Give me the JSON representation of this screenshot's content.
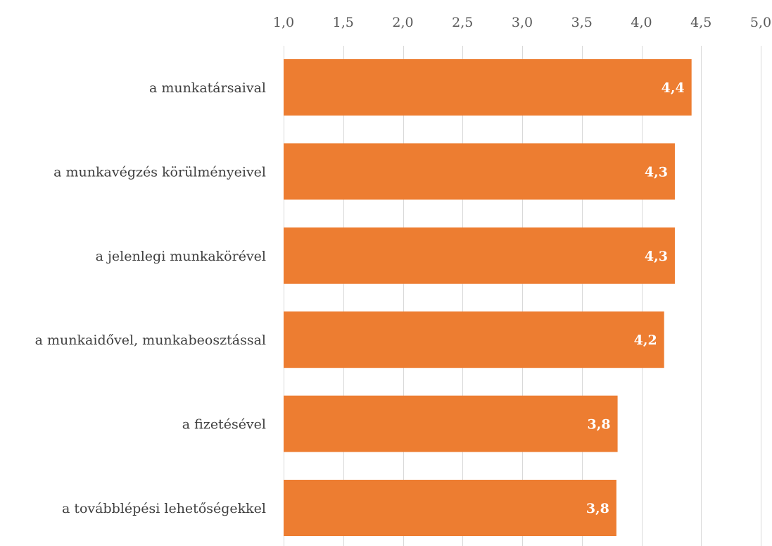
{
  "chart_data": {
    "type": "bar",
    "orientation": "horizontal",
    "categories": [
      "a munkatársaival",
      "a munkavégzés körülményeivel",
      "a jelenlegi munkakörével",
      "a munkaidővel, munkabeosztással",
      "a fizetésével",
      "a továbblépési lehetőségekkel"
    ],
    "values": [
      4.42,
      4.28,
      4.28,
      4.19,
      3.8,
      3.79
    ],
    "data_labels": [
      "4,4",
      "4,3",
      "4,3",
      "4,2",
      "3,8",
      "3,8"
    ],
    "xlim": [
      1.0,
      5.0
    ],
    "x_ticks": [
      1.0,
      1.5,
      2.0,
      2.5,
      3.0,
      3.5,
      4.0,
      4.5,
      5.0
    ],
    "x_tick_labels": [
      "1,0",
      "1,5",
      "2,0",
      "2,5",
      "3,0",
      "3,5",
      "4,0",
      "4,5",
      "5,0"
    ],
    "x_axis_position": "top",
    "grid": true,
    "legend": "none",
    "bar_color": "#ED7D31",
    "title": "",
    "xlabel": "",
    "ylabel": ""
  }
}
